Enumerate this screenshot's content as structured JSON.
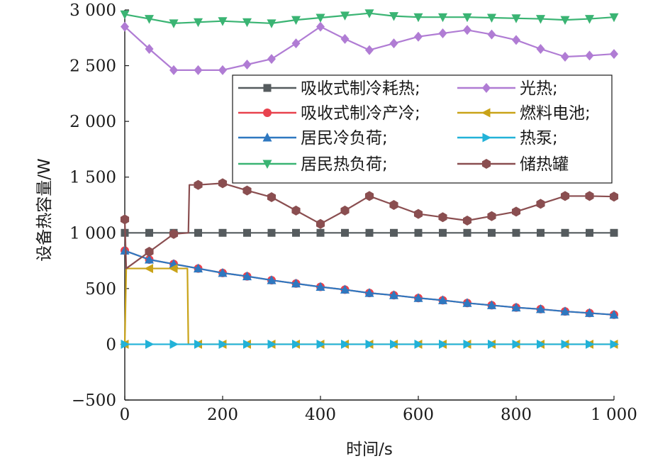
{
  "chart_data": {
    "type": "line",
    "xlabel": "时间/s",
    "ylabel": "设备热容量/W",
    "xlim": [
      0,
      1000
    ],
    "ylim": [
      -500,
      3000
    ],
    "x_ticks": [
      0,
      200,
      400,
      600,
      800,
      1000
    ],
    "x_tick_labels": [
      "0",
      "200",
      "400",
      "600",
      "800",
      "1 000"
    ],
    "y_ticks": [
      -500,
      0,
      500,
      1000,
      1500,
      2000,
      2500,
      3000
    ],
    "y_tick_labels": [
      "−500",
      "0",
      "500",
      "1 000",
      "1 500",
      "2 000",
      "2 500",
      "3 000"
    ],
    "grid": false,
    "legend_position": "upper-right",
    "series": [
      {
        "name": "吸收式制冷耗热;",
        "color": "#555b5e",
        "marker": "square",
        "x": [
          0,
          50,
          100,
          150,
          200,
          250,
          300,
          350,
          400,
          450,
          500,
          550,
          600,
          650,
          700,
          750,
          800,
          850,
          900,
          950,
          1000
        ],
        "y": [
          1000,
          1000,
          1000,
          1000,
          1000,
          1000,
          1000,
          1000,
          1000,
          1000,
          1000,
          1000,
          1000,
          1000,
          1000,
          1000,
          1000,
          1000,
          1000,
          1000,
          1000
        ]
      },
      {
        "name": "吸收式制冷产冷;",
        "color": "#e8424e",
        "marker": "circle",
        "x": [
          0,
          50,
          100,
          150,
          200,
          250,
          300,
          350,
          400,
          450,
          500,
          550,
          600,
          650,
          700,
          750,
          800,
          850,
          900,
          950,
          1000
        ],
        "y": [
          840,
          760,
          720,
          680,
          640,
          610,
          575,
          545,
          515,
          490,
          460,
          440,
          415,
          395,
          370,
          350,
          330,
          315,
          295,
          280,
          265
        ]
      },
      {
        "name": "居民冷负荷;",
        "color": "#2e78c0",
        "marker": "triangle-up",
        "x": [
          0,
          50,
          100,
          150,
          200,
          250,
          300,
          350,
          400,
          450,
          500,
          550,
          600,
          650,
          700,
          750,
          800,
          850,
          900,
          950,
          1000
        ],
        "y": [
          840,
          760,
          720,
          680,
          640,
          610,
          575,
          545,
          515,
          490,
          460,
          440,
          415,
          395,
          370,
          350,
          330,
          315,
          295,
          280,
          265
        ]
      },
      {
        "name": "居民热负荷;",
        "color": "#3ab473",
        "marker": "triangle-down",
        "x": [
          0,
          50,
          100,
          150,
          200,
          250,
          300,
          350,
          400,
          450,
          500,
          550,
          600,
          650,
          700,
          750,
          800,
          850,
          900,
          950,
          1000
        ],
        "y": [
          2960,
          2920,
          2880,
          2890,
          2900,
          2890,
          2880,
          2910,
          2930,
          2950,
          2970,
          2945,
          2935,
          2935,
          2935,
          2930,
          2925,
          2920,
          2910,
          2920,
          2935
        ]
      },
      {
        "name": "光热;",
        "color": "#b07cd4",
        "marker": "diamond",
        "x": [
          0,
          50,
          100,
          150,
          200,
          250,
          300,
          350,
          400,
          450,
          500,
          550,
          600,
          650,
          700,
          750,
          800,
          850,
          900,
          950,
          1000
        ],
        "y": [
          2850,
          2650,
          2460,
          2460,
          2460,
          2510,
          2560,
          2700,
          2850,
          2740,
          2640,
          2700,
          2760,
          2790,
          2820,
          2780,
          2730,
          2650,
          2580,
          2590,
          2605
        ]
      },
      {
        "name": "燃料电池;",
        "color": "#c9a318",
        "marker": "triangle-left",
        "x": [
          0,
          3,
          50,
          100,
          128,
          130,
          150,
          200,
          250,
          300,
          350,
          400,
          450,
          500,
          550,
          600,
          650,
          700,
          750,
          800,
          850,
          900,
          950,
          1000
        ],
        "y": [
          0,
          680,
          680,
          680,
          680,
          0,
          0,
          0,
          0,
          0,
          0,
          0,
          0,
          0,
          0,
          0,
          0,
          0,
          0,
          0,
          0,
          0,
          0,
          0
        ],
        "marker_x": [
          0,
          50,
          100,
          150,
          200,
          250,
          300,
          350,
          400,
          450,
          500,
          550,
          600,
          650,
          700,
          750,
          800,
          850,
          900,
          950,
          1000
        ],
        "marker_y": [
          0,
          680,
          680,
          0,
          0,
          0,
          0,
          0,
          0,
          0,
          0,
          0,
          0,
          0,
          0,
          0,
          0,
          0,
          0,
          0,
          0
        ]
      },
      {
        "name": "热泵;",
        "color": "#22b2d8",
        "marker": "triangle-right",
        "x": [
          0,
          50,
          100,
          150,
          200,
          250,
          300,
          350,
          400,
          450,
          500,
          550,
          600,
          650,
          700,
          750,
          800,
          850,
          900,
          950,
          1000
        ],
        "y": [
          0,
          0,
          0,
          0,
          0,
          0,
          0,
          0,
          0,
          0,
          0,
          0,
          0,
          0,
          0,
          0,
          0,
          0,
          0,
          0,
          0
        ]
      },
      {
        "name": "储热罐",
        "color": "#8a4e50",
        "marker": "hexagon",
        "x": [
          0,
          3,
          50,
          100,
          130,
          132,
          150,
          200,
          250,
          300,
          350,
          400,
          450,
          500,
          550,
          600,
          650,
          700,
          750,
          800,
          850,
          900,
          950,
          1000
        ],
        "y": [
          1120,
          680,
          830,
          990,
          1000,
          1430,
          1430,
          1445,
          1380,
          1320,
          1200,
          1080,
          1200,
          1330,
          1250,
          1170,
          1140,
          1110,
          1150,
          1190,
          1260,
          1330,
          1330,
          1325
        ],
        "marker_x": [
          0,
          50,
          100,
          150,
          200,
          250,
          300,
          350,
          400,
          450,
          500,
          550,
          600,
          650,
          700,
          750,
          800,
          850,
          900,
          950,
          1000
        ],
        "marker_y": [
          1120,
          830,
          990,
          1430,
          1445,
          1380,
          1320,
          1200,
          1080,
          1200,
          1330,
          1250,
          1170,
          1140,
          1110,
          1150,
          1190,
          1260,
          1330,
          1330,
          1325
        ]
      }
    ]
  }
}
